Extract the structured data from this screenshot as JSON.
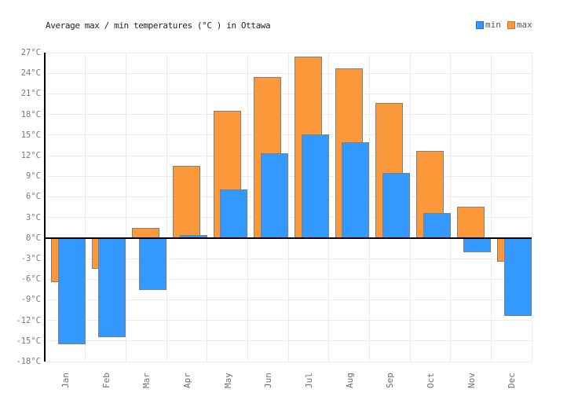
{
  "title": "Average max / min temperatures (°C ) in Ottawa",
  "legend": {
    "items": [
      {
        "label": "min",
        "color": "#3399ff",
        "border": "#2f6eb5"
      },
      {
        "label": "max",
        "color": "#fa983a",
        "border": "#c07b2d"
      }
    ],
    "position": "top-right"
  },
  "colors": {
    "min_bar": "#3399ff",
    "max_bar": "#fa983a",
    "bar_border": "#808080",
    "grid": "#ececec",
    "axis": "#000000",
    "tick_text": "#7a7a7a",
    "title_text": "#222222"
  },
  "chart_data": {
    "type": "bar",
    "title": "Average max / min temperatures (°C ) in Ottawa",
    "categories": [
      "Jan",
      "Feb",
      "Mar",
      "Apr",
      "May",
      "Jun",
      "Jul",
      "Aug",
      "Sep",
      "Oct",
      "Nov",
      "Dec"
    ],
    "series": [
      {
        "name": "min",
        "color": "#3399ff",
        "values": [
          -15.5,
          -14.4,
          -7.6,
          0.4,
          7.1,
          12.4,
          15.1,
          13.9,
          9.5,
          3.6,
          -2.1,
          -11.4
        ]
      },
      {
        "name": "max",
        "color": "#fa983a",
        "values": [
          -6.4,
          -4.5,
          1.5,
          10.5,
          18.5,
          23.5,
          26.4,
          24.7,
          19.7,
          12.7,
          4.6,
          -3.5
        ]
      }
    ],
    "xlabel": "",
    "ylabel": "",
    "ylim": [
      -18,
      27
    ],
    "ytick_step": 3,
    "yticks": [
      "27°C",
      "24°C",
      "21°C",
      "18°C",
      "15°C",
      "12°C",
      "9°C",
      "6°C",
      "3°C",
      "0°C",
      "-3°C",
      "-6°C",
      "-9°C",
      "-12°C",
      "-15°C",
      "-18°C"
    ],
    "grid": true,
    "zero_line": true,
    "x_labels_rotated_deg": -90,
    "legend_position": "top-right",
    "bar_layout": "overlapping: max behind, min in front offset right"
  }
}
